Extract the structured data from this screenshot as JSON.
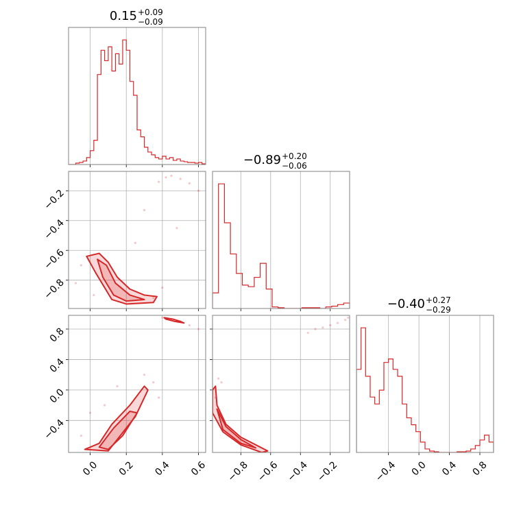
{
  "chart_data": [
    {
      "type": "histogram",
      "title": "0.15",
      "title_upper": "+0.09",
      "title_lower": "−0.09",
      "color": "#d62728",
      "grid": true,
      "xtick_labels": false,
      "xlim": [
        -0.12,
        0.64
      ],
      "ylim": [
        0,
        198
      ],
      "xticks": [
        0,
        0.2,
        0.4,
        0.6
      ],
      "bins": [
        -0.12,
        -0.1,
        -0.08,
        -0.06,
        -0.04,
        -0.02,
        0.0,
        0.02,
        0.04,
        0.06,
        0.08,
        0.1,
        0.12,
        0.14,
        0.16,
        0.18,
        0.2,
        0.22,
        0.24,
        0.26,
        0.28,
        0.3,
        0.32,
        0.34,
        0.36,
        0.38,
        0.4,
        0.42,
        0.44,
        0.46,
        0.48,
        0.5,
        0.52,
        0.54,
        0.56,
        0.58,
        0.6,
        0.62,
        0.64
      ],
      "values": [
        0,
        0,
        2,
        3,
        5,
        10,
        20,
        35,
        130,
        165,
        150,
        170,
        135,
        160,
        145,
        180,
        165,
        120,
        100,
        50,
        40,
        25,
        18,
        14,
        10,
        8,
        12,
        8,
        10,
        6,
        8,
        5,
        4,
        3,
        3,
        2,
        3,
        1
      ]
    },
    {
      "type": "contour",
      "color": "#d62728",
      "grid": true,
      "xtick_labels": false,
      "ytick_labels": true,
      "xlim": [
        -0.12,
        0.64
      ],
      "ylim": [
        -0.99,
        -0.07
      ],
      "xticks": [
        0,
        0.2,
        0.4,
        0.6
      ],
      "yticks": [
        {
          "value": -0.2,
          "label": "−0.2"
        },
        {
          "value": -0.4,
          "label": "−0.4"
        },
        {
          "value": -0.6,
          "label": "−0.6"
        },
        {
          "value": -0.8,
          "label": "−0.8"
        }
      ],
      "points": {
        "x": [
          0.42,
          0.45,
          0.5,
          0.38,
          0.55,
          0.3,
          0.48,
          -0.05,
          -0.08,
          0.02,
          0.25,
          0.4,
          0.6,
          0.35
        ],
        "y": [
          -0.11,
          -0.1,
          -0.12,
          -0.14,
          -0.15,
          -0.33,
          -0.45,
          -0.7,
          -0.82,
          -0.9,
          -0.55,
          -0.85,
          -0.2,
          -0.92
        ]
      },
      "contours": [
        {
          "x": [
            -0.02,
            0.05,
            0.1,
            0.15,
            0.22,
            0.3,
            0.37,
            0.35,
            0.2,
            0.12,
            0.08,
            0.03
          ],
          "y": [
            -0.64,
            -0.62,
            -0.68,
            -0.78,
            -0.86,
            -0.9,
            -0.91,
            -0.95,
            -0.96,
            -0.93,
            -0.85,
            -0.75
          ]
        },
        {
          "x": [
            0.04,
            0.09,
            0.14,
            0.22,
            0.3,
            0.2,
            0.13,
            0.07
          ],
          "y": [
            -0.66,
            -0.7,
            -0.82,
            -0.9,
            -0.93,
            -0.94,
            -0.9,
            -0.78
          ]
        }
      ]
    },
    {
      "type": "histogram",
      "title": "−0.89",
      "title_upper": "+0.20",
      "title_lower": "−0.06",
      "color": "#d62728",
      "grid": true,
      "xtick_labels": false,
      "xlim": [
        -0.99,
        -0.07
      ],
      "ylim": [
        0,
        176
      ],
      "xticks": [
        -0.8,
        -0.6,
        -0.4,
        -0.2
      ],
      "bins": [
        -0.99,
        -0.95,
        -0.91,
        -0.87,
        -0.83,
        -0.79,
        -0.75,
        -0.71,
        -0.67,
        -0.63,
        -0.59,
        -0.55,
        -0.51,
        -0.47,
        -0.43,
        -0.39,
        -0.35,
        -0.31,
        -0.27,
        -0.23,
        -0.19,
        -0.15,
        -0.11,
        -0.07
      ],
      "values": [
        20,
        160,
        110,
        70,
        45,
        30,
        28,
        40,
        58,
        25,
        2,
        1,
        0,
        0,
        0,
        1,
        1,
        1,
        0,
        2,
        3,
        5,
        7
      ]
    },
    {
      "type": "contour",
      "color": "#d62728",
      "grid": true,
      "xtick_labels": true,
      "ytick_labels": true,
      "xlim": [
        -0.12,
        0.64
      ],
      "ylim": [
        -0.82,
        0.98
      ],
      "xticks": [
        {
          "value": 0,
          "label": "0.0"
        },
        0.2,
        0.4,
        0.6
      ],
      "yticks": [
        0.8,
        0.4,
        {
          "value": 0,
          "label": "0.0"
        },
        {
          "value": -0.4,
          "label": "−0.4"
        }
      ],
      "points": {
        "x": [
          0.4,
          0.45,
          0.5,
          0.55,
          0.6,
          -0.05,
          0.0,
          0.35,
          0.3,
          0.08,
          0.38,
          0.15
        ],
        "y": [
          0.95,
          0.93,
          0.9,
          0.85,
          0.8,
          -0.6,
          -0.3,
          0.1,
          0.2,
          -0.2,
          -0.1,
          0.05
        ]
      },
      "contours": [
        {
          "x": [
            -0.03,
            0.05,
            0.12,
            0.22,
            0.3,
            0.32,
            0.25,
            0.15,
            0.1
          ],
          "y": [
            -0.78,
            -0.7,
            -0.45,
            -0.2,
            0.05,
            0,
            -0.35,
            -0.65,
            -0.8
          ]
        },
        {
          "x": [
            0.05,
            0.13,
            0.22,
            0.26,
            0.18,
            0.1
          ],
          "y": [
            -0.75,
            -0.5,
            -0.28,
            -0.3,
            -0.6,
            -0.78
          ]
        },
        {
          "x": [
            0.41,
            0.46,
            0.5,
            0.52,
            0.47,
            0.42
          ],
          "y": [
            0.95,
            0.93,
            0.9,
            0.88,
            0.9,
            0.93
          ]
        }
      ]
    },
    {
      "type": "contour",
      "color": "#d62728",
      "grid": true,
      "xtick_labels": true,
      "ytick_labels": false,
      "xlim": [
        -0.99,
        -0.07
      ],
      "ylim": [
        -0.82,
        0.98
      ],
      "xticks": [
        {
          "value": -0.8,
          "label": "−0.8"
        },
        {
          "value": -0.6,
          "label": "−0.6"
        },
        {
          "value": -0.4,
          "label": "−0.4"
        },
        {
          "value": -0.2,
          "label": "−0.2"
        }
      ],
      "yticks": [
        0.8,
        0.4,
        0,
        -0.4
      ],
      "points": {
        "x": [
          -0.1,
          -0.15,
          -0.2,
          -0.3,
          -0.35,
          -0.08,
          -0.25,
          -0.95,
          -0.93,
          -0.97
        ],
        "y": [
          0.92,
          0.88,
          0.85,
          0.8,
          0.75,
          0.95,
          0.82,
          0.15,
          0.1,
          -0.1
        ]
      },
      "contours": [
        {
          "x": [
            -0.97,
            -0.96,
            -0.9,
            -0.8,
            -0.7,
            -0.62,
            -0.66,
            -0.8,
            -0.92,
            -0.99,
            -0.99
          ],
          "y": [
            0.05,
            -0.2,
            -0.45,
            -0.62,
            -0.72,
            -0.8,
            -0.82,
            -0.72,
            -0.55,
            -0.3,
            0
          ]
        },
        {
          "x": [
            -0.96,
            -0.9,
            -0.8,
            -0.7,
            -0.8,
            -0.92
          ],
          "y": [
            -0.25,
            -0.48,
            -0.65,
            -0.76,
            -0.7,
            -0.52
          ]
        }
      ]
    },
    {
      "type": "histogram",
      "title": "−0.40",
      "title_upper": "+0.27",
      "title_lower": "−0.29",
      "color": "#d62728",
      "grid": true,
      "xtick_labels": true,
      "xlim": [
        -0.82,
        0.98
      ],
      "ylim": [
        0,
        198
      ],
      "xticks": [
        {
          "value": -0.4,
          "label": "−0.4"
        },
        {
          "value": 0,
          "label": "0.0"
        },
        0.4,
        0.8
      ],
      "bins": [
        -0.82,
        -0.76,
        -0.7,
        -0.64,
        -0.58,
        -0.52,
        -0.46,
        -0.4,
        -0.34,
        -0.28,
        -0.22,
        -0.16,
        -0.1,
        -0.04,
        0.02,
        0.08,
        0.14,
        0.2,
        0.26,
        0.32,
        0.38,
        0.44,
        0.5,
        0.56,
        0.62,
        0.68,
        0.74,
        0.8,
        0.86,
        0.92,
        0.98
      ],
      "values": [
        120,
        180,
        110,
        80,
        70,
        90,
        130,
        135,
        120,
        110,
        70,
        50,
        40,
        30,
        15,
        5,
        2,
        1,
        0,
        0,
        0,
        0,
        1,
        1,
        2,
        5,
        10,
        18,
        25,
        15
      ]
    }
  ]
}
